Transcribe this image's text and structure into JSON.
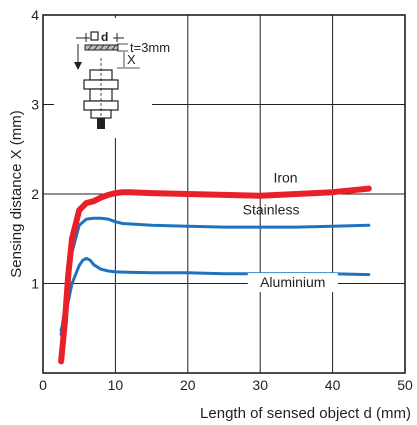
{
  "chart_data": {
    "type": "line",
    "title": "",
    "xlabel": "Length of sensed object d (mm)",
    "ylabel": "Sensing distance X (mm)",
    "xlim": [
      0,
      50
    ],
    "ylim": [
      0,
      4
    ],
    "xticks": [
      0,
      10,
      20,
      30,
      40,
      50
    ],
    "yticks": [
      1,
      2,
      3,
      4
    ],
    "grid": true,
    "series": [
      {
        "name": "Iron",
        "color": "#e8202a",
        "x": [
          2.5,
          3,
          3.5,
          4,
          5,
          6,
          7,
          8,
          9,
          10,
          11,
          12,
          15,
          20,
          25,
          30,
          35,
          40,
          45
        ],
        "y": [
          0.13,
          0.55,
          1.1,
          1.5,
          1.82,
          1.9,
          1.92,
          1.96,
          1.99,
          2.01,
          2.02,
          2.02,
          2.01,
          2.0,
          1.99,
          1.98,
          2.0,
          2.02,
          2.06
        ]
      },
      {
        "name": "Stainless",
        "color": "#1e73be",
        "x": [
          2.5,
          3,
          3.5,
          4,
          5,
          6,
          7,
          8,
          9,
          10,
          11,
          15,
          20,
          25,
          30,
          35,
          40,
          45
        ],
        "y": [
          0.43,
          0.72,
          1.05,
          1.35,
          1.65,
          1.72,
          1.73,
          1.73,
          1.72,
          1.69,
          1.67,
          1.65,
          1.64,
          1.63,
          1.63,
          1.63,
          1.64,
          1.65
        ]
      },
      {
        "name": "Aluminium",
        "color": "#1e73be",
        "x": [
          2.5,
          3,
          3.5,
          4,
          5,
          5.5,
          6,
          6.5,
          7,
          8,
          9,
          10,
          15,
          20,
          25,
          30,
          35,
          40,
          45
        ],
        "y": [
          0.48,
          0.62,
          0.8,
          1.0,
          1.2,
          1.26,
          1.28,
          1.26,
          1.21,
          1.16,
          1.14,
          1.13,
          1.12,
          1.12,
          1.11,
          1.11,
          1.11,
          1.11,
          1.1
        ]
      }
    ]
  },
  "diagram": {
    "dimension_label": "d",
    "thickness_label": "t=3mm",
    "distance_label": "X"
  }
}
